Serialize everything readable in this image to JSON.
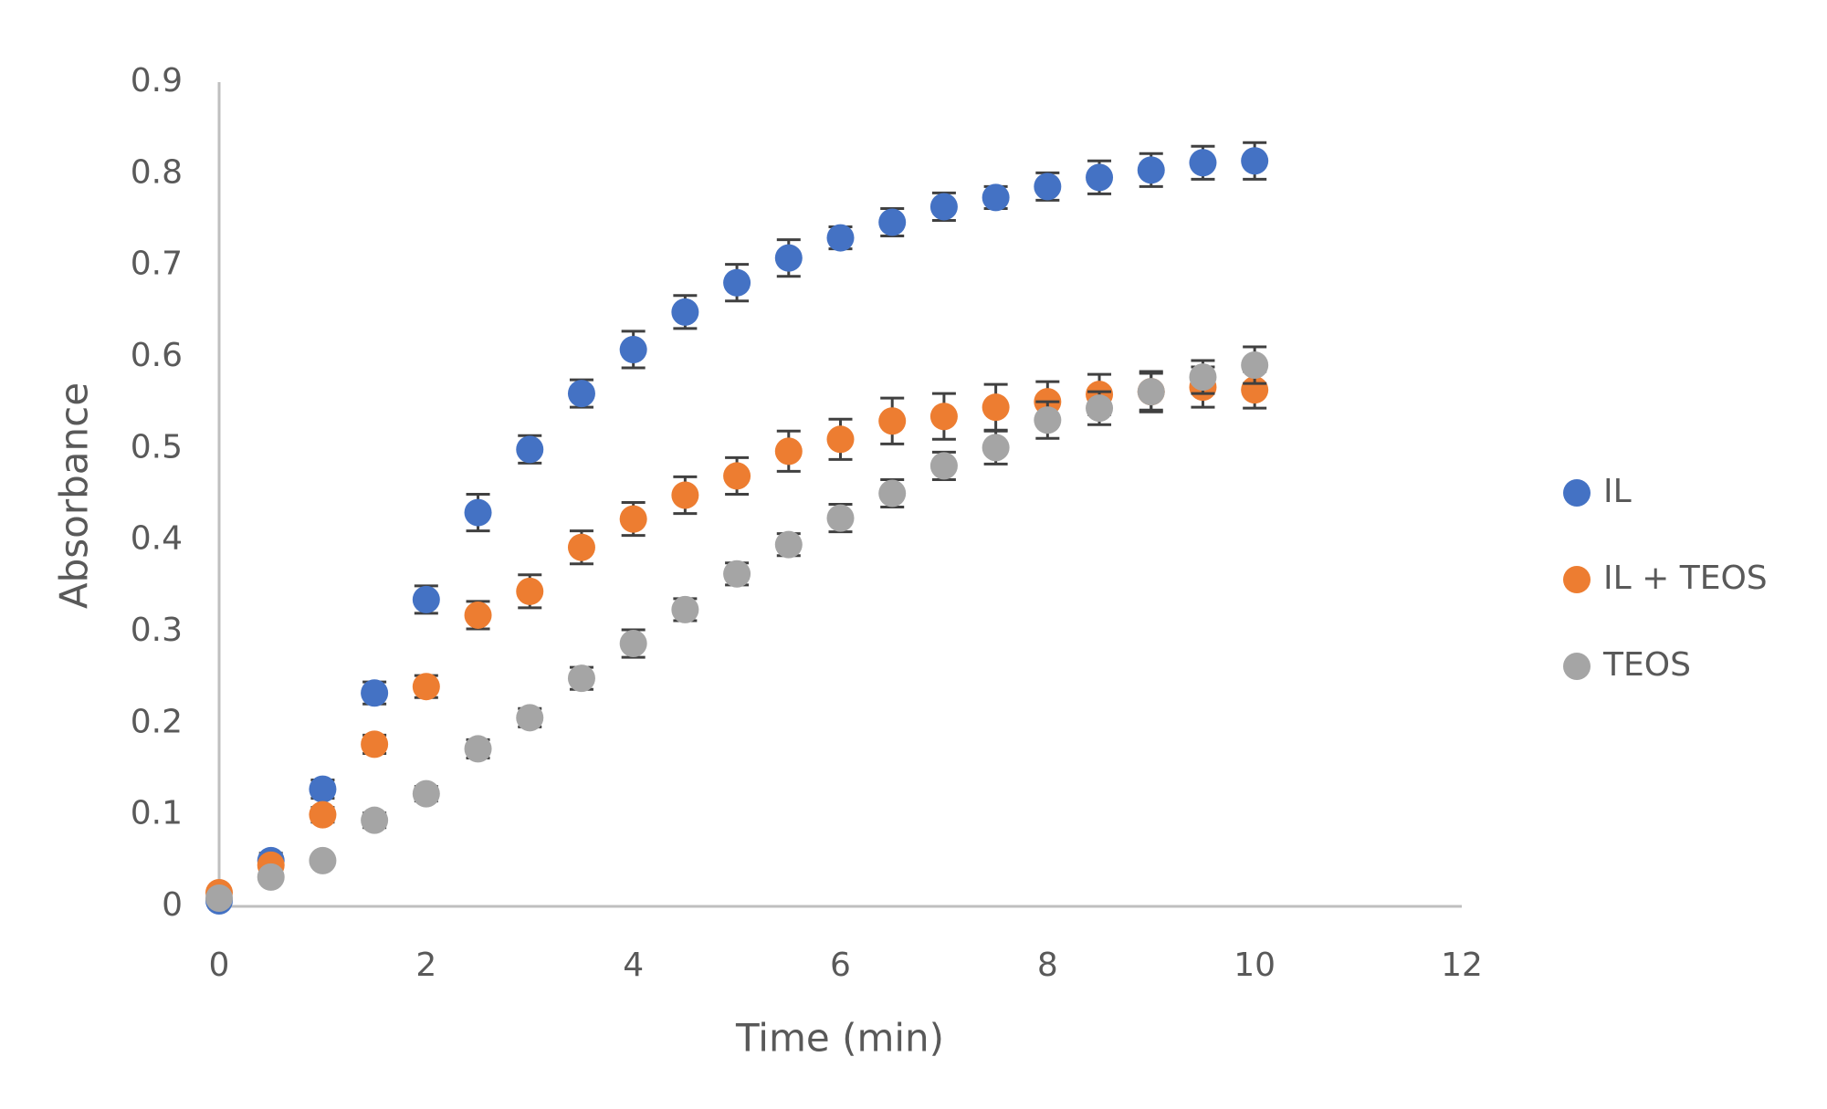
{
  "chart_data": {
    "type": "scatter",
    "x_label": "Time (min)",
    "y_label": "Absorbance",
    "x": [
      0,
      0.5,
      1,
      1.5,
      2,
      2.5,
      3,
      3.5,
      4,
      4.5,
      5,
      5.5,
      6,
      6.5,
      7,
      7.5,
      8,
      8.5,
      9,
      9.5,
      10
    ],
    "series": [
      {
        "name": "IL",
        "color": "#4472c4",
        "values": [
          0.006,
          0.05,
          0.128,
          0.233,
          0.335,
          0.43,
          0.499,
          0.56,
          0.608,
          0.649,
          0.681,
          0.708,
          0.73,
          0.747,
          0.764,
          0.774,
          0.786,
          0.796,
          0.804,
          0.812,
          0.814
        ],
        "errors": [
          0.005,
          0.008,
          0.01,
          0.012,
          0.015,
          0.02,
          0.015,
          0.015,
          0.02,
          0.018,
          0.02,
          0.02,
          0.012,
          0.015,
          0.015,
          0.012,
          0.015,
          0.018,
          0.018,
          0.018,
          0.02
        ]
      },
      {
        "name": "IL + TEOS",
        "color": "#ed7d31",
        "values": [
          0.015,
          0.045,
          0.1,
          0.177,
          0.24,
          0.318,
          0.344,
          0.392,
          0.423,
          0.449,
          0.47,
          0.497,
          0.51,
          0.53,
          0.535,
          0.545,
          0.551,
          0.559,
          0.562,
          0.567,
          0.564
        ],
        "errors": [
          0.005,
          0.005,
          0.008,
          0.01,
          0.012,
          0.015,
          0.018,
          0.018,
          0.018,
          0.02,
          0.02,
          0.022,
          0.022,
          0.025,
          0.025,
          0.025,
          0.022,
          0.022,
          0.022,
          0.022,
          0.02
        ]
      },
      {
        "name": "TEOS",
        "color": "#a5a5a5",
        "values": [
          0.009,
          0.032,
          0.05,
          0.094,
          0.123,
          0.172,
          0.206,
          0.249,
          0.287,
          0.324,
          0.363,
          0.395,
          0.424,
          0.451,
          0.481,
          0.501,
          0.531,
          0.544,
          0.562,
          0.578,
          0.591
        ],
        "errors": [
          0.005,
          0.005,
          0.005,
          0.008,
          0.008,
          0.01,
          0.01,
          0.012,
          0.015,
          0.012,
          0.012,
          0.012,
          0.015,
          0.015,
          0.015,
          0.018,
          0.02,
          0.018,
          0.02,
          0.018,
          0.02
        ]
      }
    ],
    "xlim": [
      0,
      12
    ],
    "xticks": [
      0,
      2,
      4,
      6,
      8,
      10,
      12
    ],
    "ylim": [
      0,
      0.9
    ],
    "yticks": [
      0,
      0.1,
      0.2,
      0.3,
      0.4,
      0.5,
      0.6,
      0.7,
      0.8,
      0.9
    ],
    "grid": false,
    "legend": "right"
  }
}
